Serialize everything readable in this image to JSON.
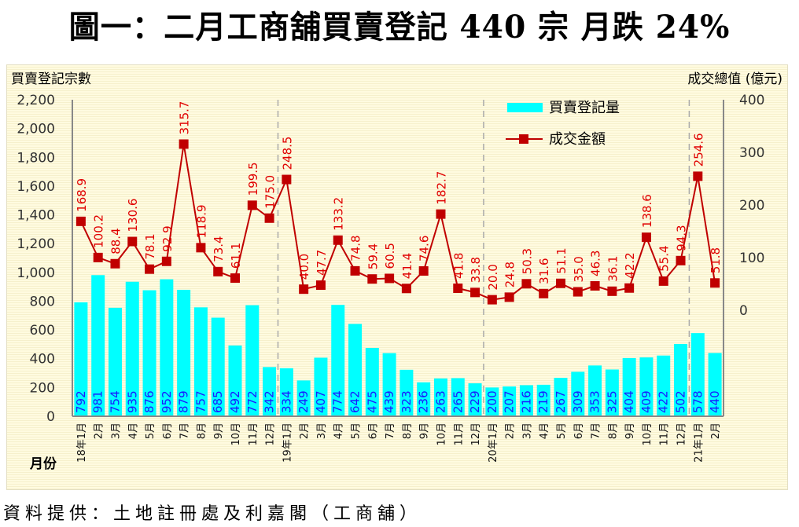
{
  "title": "圖一：二月工商舖買賣登記 440 宗  月跌 24%",
  "footer": "資料提供：土地註冊處及利嘉閣（工商舖）",
  "chart_data": {
    "type": "bar",
    "title": "圖一：二月工商舖買賣登記 440 宗  月跌 24%",
    "xlabel": "月份",
    "ylabel": "買賣登記宗數",
    "y2label": "成交總值 (億元)",
    "ylim": [
      0,
      2200
    ],
    "y2lim": [
      0,
      400
    ],
    "yticks": [
      "0",
      "200",
      "400",
      "600",
      "800",
      "1,000",
      "1,200",
      "1,400",
      "1,600",
      "1,800",
      "2,000",
      "2,200"
    ],
    "y2ticks": [
      "0",
      "100",
      "200",
      "300",
      "400"
    ],
    "grid": false,
    "legend_position": "top-right",
    "categories": [
      "18年1月",
      "2月",
      "3月",
      "4月",
      "5月",
      "6月",
      "7月",
      "8月",
      "9月",
      "10月",
      "11月",
      "12月",
      "19年1月",
      "2月",
      "3月",
      "4月",
      "5月",
      "6月",
      "7月",
      "8月",
      "9月",
      "10月",
      "11月",
      "12月",
      "20年1月",
      "2月",
      "3月",
      "4月",
      "5月",
      "6月",
      "7月",
      "8月",
      "9月",
      "10月",
      "11月",
      "12月",
      "21年1月",
      "2月"
    ],
    "year_dividers_before": [
      "19年1月",
      "20年1月",
      "21年1月"
    ],
    "series": [
      {
        "name": "買賣登記量",
        "type": "bar",
        "axis": "left",
        "color": "#00ffff",
        "label_color": "#1a1aff",
        "values": [
          792,
          981,
          754,
          935,
          876,
          952,
          879,
          757,
          685,
          492,
          772,
          342,
          334,
          249,
          407,
          774,
          642,
          475,
          439,
          323,
          236,
          263,
          265,
          229,
          200,
          207,
          216,
          219,
          267,
          309,
          353,
          325,
          404,
          409,
          422,
          502,
          578,
          440
        ]
      },
      {
        "name": "成交金額",
        "type": "line",
        "axis": "right",
        "color": "#c00000",
        "label_color": "#e00000",
        "values": [
          168.9,
          100.2,
          88.4,
          130.6,
          78.1,
          92.9,
          315.7,
          118.9,
          73.4,
          61.1,
          199.5,
          175.0,
          248.5,
          40.0,
          47.7,
          133.2,
          74.8,
          59.4,
          60.5,
          41.4,
          74.6,
          182.7,
          41.8,
          33.8,
          20.0,
          24.8,
          50.3,
          31.6,
          51.1,
          35.0,
          46.3,
          36.1,
          42.2,
          138.6,
          55.4,
          94.3,
          254.6,
          51.8
        ]
      }
    ]
  }
}
